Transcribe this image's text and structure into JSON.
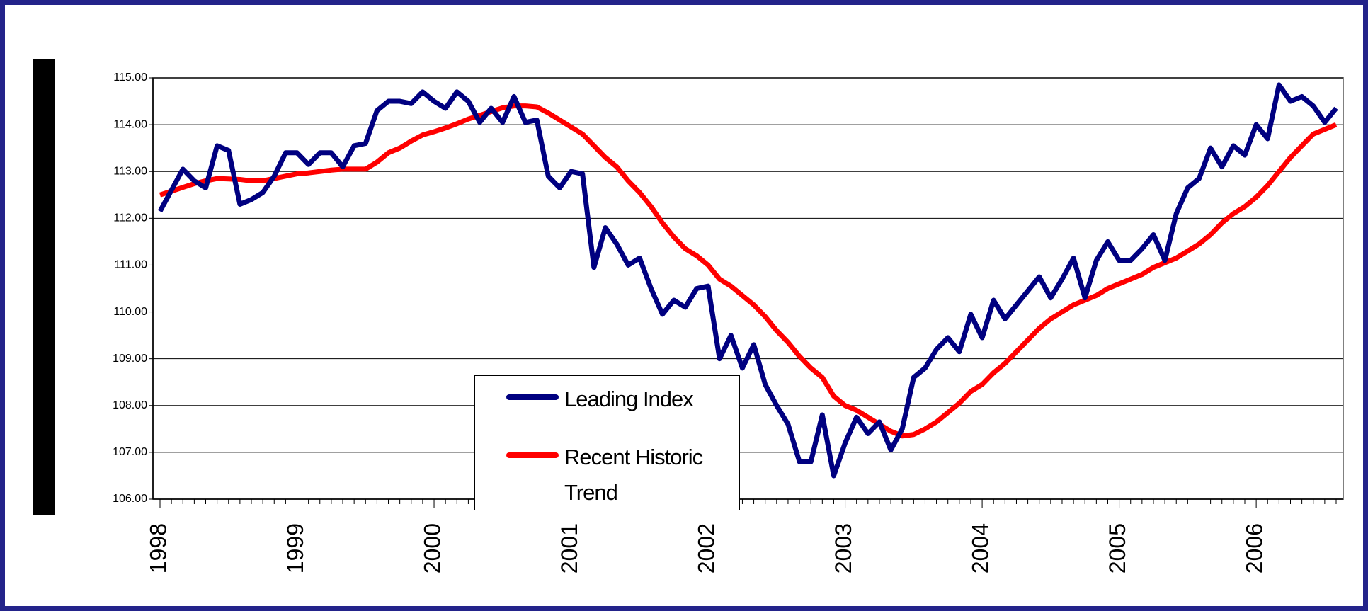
{
  "chart_data": {
    "type": "line",
    "categories": [
      "1998",
      null,
      null,
      null,
      null,
      null,
      null,
      null,
      null,
      null,
      null,
      null,
      "1999",
      null,
      null,
      null,
      null,
      null,
      null,
      null,
      null,
      null,
      null,
      null,
      "2000",
      null,
      null,
      null,
      null,
      null,
      null,
      null,
      null,
      null,
      null,
      null,
      "2001",
      null,
      null,
      null,
      null,
      null,
      null,
      null,
      null,
      null,
      null,
      null,
      "2002",
      null,
      null,
      null,
      null,
      null,
      null,
      null,
      null,
      null,
      null,
      null,
      "2003",
      null,
      null,
      null,
      null,
      null,
      null,
      null,
      null,
      null,
      null,
      null,
      "2004",
      null,
      null,
      null,
      null,
      null,
      null,
      null,
      null,
      null,
      null,
      null,
      "2005",
      null,
      null,
      null,
      null,
      null,
      null,
      null,
      null,
      null,
      null,
      null,
      "2006",
      null,
      null,
      null,
      null,
      null,
      null,
      null
    ],
    "series": [
      {
        "name": "Leading Index",
        "color": "#000080",
        "values": [
          112.15,
          112.6,
          113.05,
          112.8,
          112.65,
          113.55,
          113.45,
          112.3,
          112.4,
          112.55,
          112.9,
          113.4,
          113.4,
          113.15,
          113.4,
          113.4,
          113.1,
          113.55,
          113.6,
          114.3,
          114.5,
          114.5,
          114.45,
          114.7,
          114.5,
          114.35,
          114.7,
          114.5,
          114.05,
          114.35,
          114.05,
          114.6,
          114.05,
          114.1,
          112.9,
          112.65,
          113.0,
          112.95,
          110.95,
          111.8,
          111.45,
          111.0,
          111.15,
          110.5,
          109.95,
          110.25,
          110.1,
          110.5,
          110.55,
          109.0,
          109.5,
          108.8,
          109.3,
          108.45,
          108.0,
          107.6,
          106.8,
          106.8,
          107.8,
          106.5,
          107.2,
          107.75,
          107.4,
          107.65,
          107.05,
          107.5,
          108.6,
          108.8,
          109.2,
          109.45,
          109.15,
          109.95,
          109.45,
          110.25,
          109.85,
          110.15,
          110.45,
          110.75,
          110.3,
          110.7,
          111.15,
          110.3,
          111.1,
          111.5,
          111.1,
          111.1,
          111.35,
          111.65,
          111.1,
          112.1,
          112.65,
          112.85,
          113.5,
          113.1,
          113.55,
          113.35,
          114.0,
          113.7,
          114.85,
          114.5,
          114.6,
          114.4,
          114.05,
          114.35
        ]
      },
      {
        "name": "Recent Historic Trend",
        "color": "#ff0000",
        "values": [
          112.5,
          112.58,
          112.66,
          112.74,
          112.8,
          112.85,
          112.84,
          112.83,
          112.8,
          112.8,
          112.85,
          112.9,
          112.95,
          112.97,
          113.0,
          113.03,
          113.05,
          113.05,
          113.05,
          113.2,
          113.4,
          113.5,
          113.65,
          113.78,
          113.85,
          113.93,
          114.02,
          114.12,
          114.2,
          114.28,
          114.36,
          114.4,
          114.4,
          114.38,
          114.25,
          114.1,
          113.95,
          113.8,
          113.55,
          113.3,
          113.1,
          112.8,
          112.55,
          112.25,
          111.9,
          111.6,
          111.35,
          111.2,
          111.0,
          110.7,
          110.55,
          110.35,
          110.15,
          109.9,
          109.6,
          109.35,
          109.05,
          108.8,
          108.6,
          108.2,
          108.0,
          107.9,
          107.75,
          107.6,
          107.45,
          107.35,
          107.38,
          107.5,
          107.65,
          107.85,
          108.05,
          108.3,
          108.45,
          108.7,
          108.9,
          109.15,
          109.4,
          109.65,
          109.85,
          110.0,
          110.15,
          110.25,
          110.35,
          110.5,
          110.6,
          110.7,
          110.8,
          110.95,
          111.05,
          111.15,
          111.3,
          111.45,
          111.65,
          111.9,
          112.1,
          112.25,
          112.45,
          112.7,
          113.0,
          113.3,
          113.55,
          113.8,
          113.9,
          114.0
        ]
      }
    ],
    "ylim": [
      106,
      115
    ],
    "yticks": [
      {
        "value": 106,
        "label": "106.00"
      },
      {
        "value": 107,
        "label": "107.00"
      },
      {
        "value": 108,
        "label": "108.00"
      },
      {
        "value": 109,
        "label": "109.00"
      },
      {
        "value": 110,
        "label": "110.00"
      },
      {
        "value": 111,
        "label": "111.00"
      },
      {
        "value": 112,
        "label": "112.00"
      },
      {
        "value": 113,
        "label": "113.00"
      },
      {
        "value": 114,
        "label": "114.00"
      },
      {
        "value": 115,
        "label": "115.00"
      }
    ],
    "grid": true
  }
}
